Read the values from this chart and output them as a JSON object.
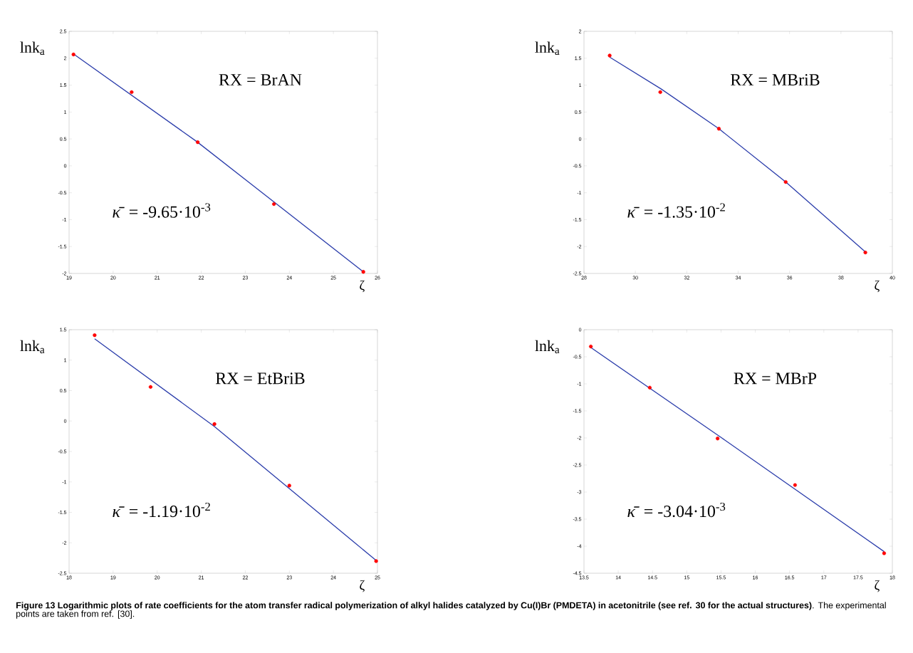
{
  "chart_data": [
    {
      "type": "scatter",
      "xlabel": "ζ",
      "ylabel": "lnk$_{a}$",
      "xlim": [
        19,
        26
      ],
      "ylim": [
        -2,
        2.5
      ],
      "xticks": [
        19,
        20,
        21,
        22,
        23,
        24,
        25,
        26
      ],
      "yticks": [
        -2,
        -1.5,
        -1,
        -0.5,
        0,
        0.5,
        1,
        1.5,
        2,
        2.5
      ],
      "series": [
        {
          "marker": "circle",
          "color": "#ff0000",
          "x": [
            19.1,
            20.42,
            21.92,
            23.65,
            25.68
          ],
          "values": [
            2.07,
            1.37,
            0.44,
            -0.71,
            -1.97
          ]
        },
        {
          "type": "line",
          "marker": "none",
          "color": "#2b3dab",
          "x": [
            19.1,
            21.9,
            25.68
          ],
          "values": [
            2.08,
            0.45,
            -1.97
          ]
        }
      ],
      "annotations": [
        "RX = BrAN",
        "*κ̄* = -9.65·10$^{-3}$"
      ]
    },
    {
      "type": "scatter",
      "xlabel": "ζ",
      "ylabel": "lnk$_{a}$",
      "xlim": [
        28,
        40
      ],
      "ylim": [
        -2.5,
        2
      ],
      "xticks": [
        28,
        30,
        32,
        34,
        36,
        38,
        40
      ],
      "yticks": [
        -2.5,
        -2,
        -1.5,
        -1,
        -0.5,
        0,
        0.5,
        1,
        1.5,
        2
      ],
      "series": [
        {
          "marker": "circle",
          "color": "#ff0000",
          "x": [
            29.0,
            30.97,
            33.25,
            35.85,
            38.95
          ],
          "values": [
            1.55,
            0.87,
            0.19,
            -0.8,
            -2.11
          ]
        },
        {
          "type": "line",
          "marker": "none",
          "color": "#2b3dab",
          "x": [
            29.0,
            31.0,
            33.25,
            35.85,
            38.95
          ],
          "values": [
            1.52,
            0.93,
            0.19,
            -0.8,
            -2.1
          ]
        }
      ],
      "annotations": [
        "RX = MBriB",
        "*κ̄* = -1.35·10$^{-2}$"
      ]
    },
    {
      "type": "scatter",
      "xlabel": "ζ",
      "ylabel": "lnk$_{a}$",
      "xlim": [
        18,
        25
      ],
      "ylim": [
        -2.5,
        1.5
      ],
      "xticks": [
        18,
        19,
        20,
        21,
        22,
        23,
        24,
        25
      ],
      "yticks": [
        -2.5,
        -2,
        -1.5,
        -1,
        -0.5,
        0,
        0.5,
        1,
        1.5
      ],
      "series": [
        {
          "marker": "circle",
          "color": "#ff0000",
          "x": [
            18.58,
            19.85,
            21.3,
            23.0,
            24.97
          ],
          "values": [
            1.41,
            0.56,
            -0.05,
            -1.06,
            -2.3
          ]
        },
        {
          "type": "line",
          "marker": "none",
          "color": "#2b3dab",
          "x": [
            18.58,
            21.3,
            24.97
          ],
          "values": [
            1.35,
            -0.09,
            -2.29
          ]
        }
      ],
      "annotations": [
        "RX = EtBriB",
        "*κ̄* = -1.19·10$^{-2}$"
      ]
    },
    {
      "type": "scatter",
      "xlabel": "ζ",
      "ylabel": "lnk$_{a}$",
      "xlim": [
        13.5,
        18
      ],
      "ylim": [
        -4.5,
        0
      ],
      "xticks": [
        13.5,
        14,
        14.5,
        15,
        15.5,
        16,
        16.5,
        17,
        17.5,
        18
      ],
      "yticks": [
        -4.5,
        -4,
        -3.5,
        -3,
        -2.5,
        -2,
        -1.5,
        -1,
        -0.5,
        0
      ],
      "series": [
        {
          "marker": "circle",
          "color": "#ff0000",
          "x": [
            13.6,
            14.46,
            15.45,
            16.58,
            17.88
          ],
          "values": [
            -0.31,
            -1.07,
            -2.01,
            -2.87,
            -4.13
          ]
        },
        {
          "type": "line",
          "marker": "none",
          "color": "#2b3dab",
          "x": [
            13.6,
            15.5,
            17.88
          ],
          "values": [
            -0.33,
            -1.99,
            -4.1
          ]
        }
      ],
      "annotations": [
        "RX = MBrP",
        "*κ̄* = -3.04·10$^{-3}$",
        "**Figure 13 Logarithmic plots of rate coefficients for the atom transfer radical polymerization of alkyl halides catalyzed by Cu(I)Br (PMDETA) in acetonitrile (see ref. 30 for the actual structures)**. The experimental points are taken from ref. [30]."
      ]
    }
  ]
}
